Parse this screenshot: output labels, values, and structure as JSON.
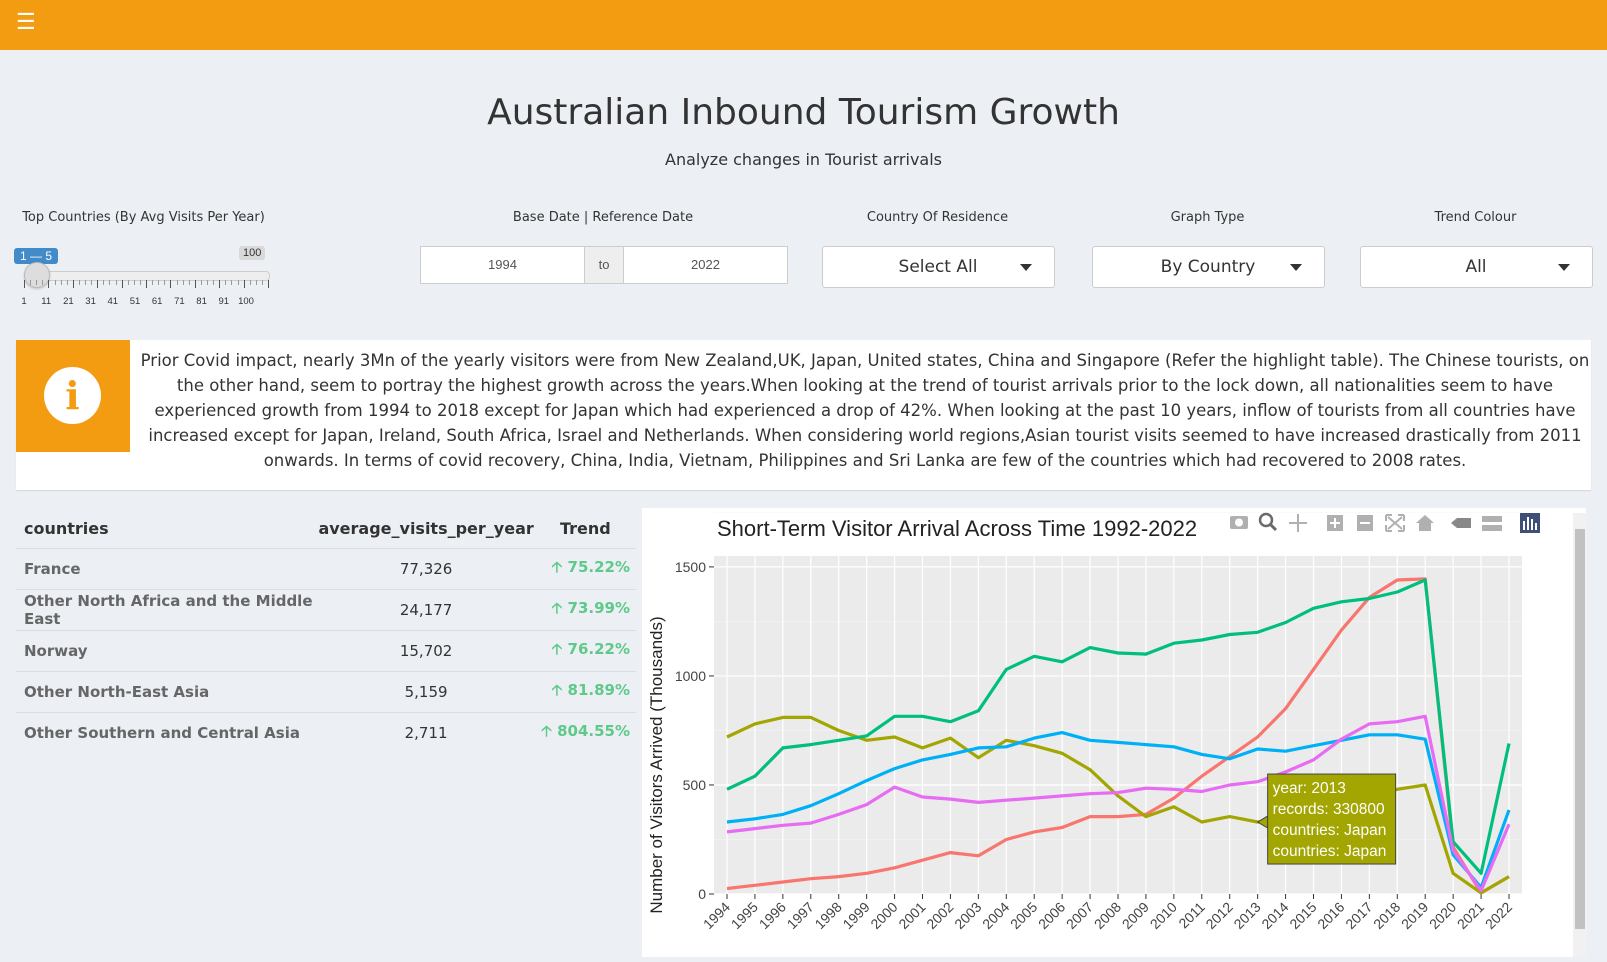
{
  "header": {
    "menu_icon": "hamburger-icon",
    "brand_color": "#f39c12"
  },
  "page": {
    "title": "Australian Inbound Tourism Growth",
    "subtitle": "Analyze changes in Tourist arrivals"
  },
  "controls": {
    "top_countries": {
      "label": "Top Countries (By Avg Visits Per Year)",
      "selected": "1 — 5",
      "min": 1,
      "max": "100",
      "value_low": 1,
      "value_high": 5,
      "ticks": [
        "1",
        "11",
        "21",
        "31",
        "41",
        "51",
        "61",
        "71",
        "81",
        "91",
        "100"
      ]
    },
    "date_range": {
      "label": "Base Date | Reference Date",
      "start": "1994",
      "separator": "to",
      "end": "2022"
    },
    "country": {
      "label": "Country Of Residence",
      "value": "Select All"
    },
    "graph_type": {
      "label": "Graph Type",
      "value": "By Country"
    },
    "trend_colour": {
      "label": "Trend Colour",
      "value": "All"
    }
  },
  "info": {
    "icon": "info-icon",
    "text": "Prior Covid impact, nearly 3Mn of the yearly visitors were from New Zealand,UK, Japan, United states, China and Singapore (Refer the highlight table). The Chinese tourists, on the other hand, seem to portray the highest growth across the years.When looking at the trend of tourist arrivals prior to the lock down, all nationalities seem to have experienced growth from 1994 to 2018 except for Japan which had experienced a drop of 42%. When looking at the past 10 years, inflow of tourists from all countries have increased except for Japan, Ireland, South Africa, Israel and Netherlands. When considering world regions,Asian tourist visits seemed to have increased drastically from 2011 onwards. In terms of covid recovery, China, India, Vietnam, Philippines and Sri Lanka are few of the countries which had recovered to 2008 rates."
  },
  "table": {
    "headers": [
      "countries",
      "average_visits_per_year",
      "Trend"
    ],
    "rows": [
      {
        "country": "France",
        "avg": "77,326",
        "trend": "75.22%"
      },
      {
        "country": "Other North Africa and the Middle East",
        "avg": "24,177",
        "trend": "73.99%"
      },
      {
        "country": "Norway",
        "avg": "15,702",
        "trend": "76.22%"
      },
      {
        "country": "Other North-East Asia",
        "avg": "5,159",
        "trend": "81.89%"
      },
      {
        "country": "Other Southern and Central Asia",
        "avg": "2,711",
        "trend": "804.55%"
      }
    ],
    "trend_color": "#5ec988"
  },
  "chart_data": {
    "type": "line",
    "title": "Short-Term Visitor Arrival Across Time 1992-2022",
    "xlabel": "",
    "ylabel": "Number of Visitors Arrived (Thousands)",
    "ylim": [
      0,
      1550
    ],
    "yticks": [
      0,
      500,
      1000,
      1500
    ],
    "x": [
      "1994",
      "1995",
      "1996",
      "1997",
      "1998",
      "1999",
      "2000",
      "2001",
      "2002",
      "2003",
      "2004",
      "2005",
      "2006",
      "2007",
      "2008",
      "2009",
      "2010",
      "2011",
      "2012",
      "2013",
      "2014",
      "2015",
      "2016",
      "2017",
      "2018",
      "2019",
      "2020",
      "2021",
      "2022"
    ],
    "series": [
      {
        "color": "#f8766d",
        "values": [
          25,
          40,
          55,
          70,
          80,
          95,
          120,
          155,
          190,
          175,
          250,
          285,
          305,
          355,
          355,
          365,
          440,
          540,
          630,
          720,
          850,
          1030,
          1210,
          1360,
          1440,
          1445,
          215,
          5,
          80
        ]
      },
      {
        "color": "#a3a500",
        "values": [
          720,
          780,
          810,
          810,
          750,
          705,
          720,
          670,
          715,
          625,
          705,
          680,
          645,
          570,
          450,
          355,
          400,
          330,
          355,
          330,
          330,
          350,
          400,
          450,
          480,
          500,
          95,
          5,
          80
        ]
      },
      {
        "color": "#00bf7d",
        "values": [
          480,
          540,
          670,
          685,
          705,
          725,
          815,
          815,
          790,
          840,
          1030,
          1090,
          1065,
          1130,
          1105,
          1100,
          1150,
          1165,
          1190,
          1200,
          1245,
          1310,
          1340,
          1355,
          1385,
          1440,
          240,
          95,
          690
        ]
      },
      {
        "color": "#00b0f6",
        "values": [
          330,
          345,
          365,
          405,
          460,
          520,
          575,
          615,
          640,
          670,
          675,
          715,
          740,
          705,
          695,
          685,
          675,
          640,
          620,
          665,
          655,
          680,
          705,
          730,
          730,
          710,
          180,
          30,
          385
        ]
      },
      {
        "color": "#e76bf3",
        "values": [
          285,
          300,
          315,
          325,
          365,
          410,
          490,
          445,
          435,
          420,
          430,
          440,
          450,
          460,
          465,
          485,
          480,
          470,
          500,
          515,
          560,
          615,
          710,
          780,
          790,
          815,
          200,
          15,
          320
        ]
      }
    ],
    "legend": "none",
    "grid": true,
    "tooltip": {
      "lines": [
        "year: 2013",
        "records:  330800",
        "countries: Japan",
        "countries: Japan"
      ],
      "background": "#a3a500",
      "at_year": "2013",
      "at_value": 330
    },
    "modebar_icons": [
      "camera-icon",
      "zoom-icon",
      "pan-icon",
      "zoom-in-icon",
      "zoom-out-icon",
      "autoscale-icon",
      "reset-axes-icon",
      "spike-icon",
      "compare-icon",
      "plotly-logo-icon"
    ]
  }
}
